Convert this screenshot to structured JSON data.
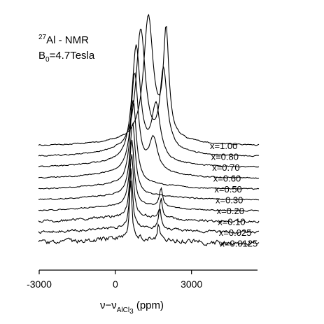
{
  "chart_data": {
    "type": "line",
    "title": "",
    "annotation": {
      "nucleus_sup": "27",
      "nucleus_text": "Al - NMR",
      "field_prefix": "B",
      "field_sub": "0",
      "field_value": "=4.7Tesla"
    },
    "xlabel": {
      "main": "ν−ν",
      "sub": "AlCl",
      "sub2": "3",
      "unit": " (ppm)"
    },
    "ylabel": "",
    "xlim": [
      -3000,
      5600
    ],
    "x_ticks": [
      -3000,
      0,
      3000
    ],
    "x_tick_labels": [
      "-3000",
      "0",
      "3000"
    ],
    "grid": false,
    "legend": "labels at right end of each trace",
    "line_color": "#000000",
    "series": [
      {
        "name": "x=0.0125",
        "peaks": [
          {
            "center": 600,
            "height": 0.95,
            "width": 120
          },
          {
            "center": 1700,
            "height": 0.3,
            "width": 90
          }
        ],
        "baseline_noise": "high"
      },
      {
        "name": "x=0.025",
        "peaks": [
          {
            "center": 620,
            "height": 1.0,
            "width": 140
          },
          {
            "center": 1750,
            "height": 0.35,
            "width": 110
          }
        ],
        "baseline_noise": "medium"
      },
      {
        "name": "x=0.10",
        "peaks": [
          {
            "center": 640,
            "height": 1.05,
            "width": 180
          },
          {
            "center": 1800,
            "height": 0.32,
            "width": 130
          }
        ],
        "baseline_noise": "medium"
      },
      {
        "name": "x=0.20",
        "peaks": [
          {
            "center": 650,
            "height": 1.1,
            "width": 220
          },
          {
            "center": 1800,
            "height": 0.3,
            "width": 160
          }
        ],
        "baseline_noise": "low"
      },
      {
        "name": "x=0.30",
        "peaks": [
          {
            "center": 680,
            "height": 1.2,
            "width": 260
          }
        ],
        "baseline_noise": "low"
      },
      {
        "name": "x=0.50",
        "peaks": [
          {
            "center": 700,
            "height": 1.4,
            "width": 300
          }
        ],
        "baseline_noise": "low"
      },
      {
        "name": "x=0.60",
        "peaks": [
          {
            "center": 760,
            "height": 1.65,
            "width": 340
          },
          {
            "center": 1500,
            "height": 0.55,
            "width": 400
          }
        ],
        "baseline_noise": "low"
      },
      {
        "name": "x=0.70",
        "peaks": [
          {
            "center": 820,
            "height": 1.9,
            "width": 400
          },
          {
            "center": 1600,
            "height": 0.9,
            "width": 400
          }
        ],
        "baseline_noise": "low"
      },
      {
        "name": "x=0.80",
        "peaks": [
          {
            "center": 1000,
            "height": 2.0,
            "width": 450
          },
          {
            "center": 1900,
            "height": 1.3,
            "width": 350
          }
        ],
        "baseline_noise": "low"
      },
      {
        "name": "x=1.00",
        "peaks": [
          {
            "center": 1300,
            "height": 2.05,
            "width": 450
          },
          {
            "center": 2000,
            "height": 1.75,
            "width": 260
          }
        ],
        "baseline_noise": "low"
      }
    ]
  }
}
